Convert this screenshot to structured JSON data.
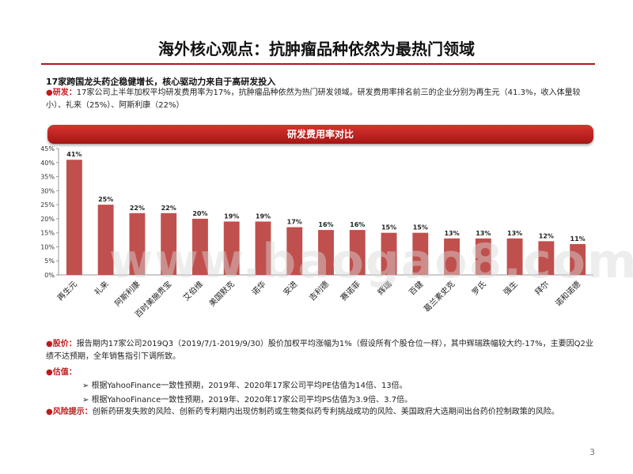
{
  "slide": {
    "title": "海外核心观点：抗肿瘤品种依然为最热门领域",
    "subheading": "17家跨国龙头药企稳健增长，核心驱动力来自于高研发投入",
    "rnd_label": "研发：",
    "rnd_text": "17家公司上半年加权平均研发费用率为17%，抗肿瘤品种依然为热门研发领域。研发费用率排名前三的企业分别为再生元（41.3%，收入体量较小）、礼来（25%）、阿斯利康（22%）",
    "chart_banner": "研发费用率对比",
    "price_label": "股价：",
    "price_text": "报告期内17家公司2019Q3（2019/7/1-2019/9/30）股价加权平均涨幅为1%（假设所有个股仓位一样），其中辉瑞跌幅较大约-17%，主要因Q2业绩不达预期，全年销售指引下调所致。",
    "valuation_label": "估值：",
    "valuation_bullets": [
      "根据YahooFinance一致性预期，2019年、2020年17家公司平均PE估值为14倍、13倍。",
      "根据YahooFinance一致性预期，2019年、2020年17家公司平均PS估值为3.9倍、3.7倍。"
    ],
    "risk_label": "风险提示：",
    "risk_text": "创新药研发失败的风险、创新药专利期内出现仿制药或生物类似药专利挑战成功的风险、美国政府大选期间出台药价控制政策的风险。",
    "page_number": "3",
    "watermark": "www.baogao8.com"
  },
  "chart_data": {
    "type": "bar",
    "categories": [
      "再生元",
      "礼来",
      "阿斯利康",
      "百时美施贵宝",
      "艾伯维",
      "美国默克",
      "诺华",
      "安进",
      "吉利德",
      "赛诺菲",
      "辉瑞",
      "百健",
      "葛兰素史克",
      "罗氏",
      "强生",
      "拜尔",
      "诺和诺德"
    ],
    "values": [
      41,
      25,
      22,
      22,
      20,
      19,
      19,
      17,
      16,
      16,
      15,
      15,
      13,
      13,
      13,
      12,
      11
    ],
    "data_labels": [
      "41%",
      "25%",
      "22%",
      "22%",
      "20%",
      "19%",
      "19%",
      "17%",
      "16%",
      "16%",
      "15%",
      "15%",
      "13%",
      "13%",
      "13%",
      "12%",
      "11%"
    ],
    "y_ticks": [
      "0%",
      "5%",
      "10%",
      "15%",
      "20%",
      "25%",
      "30%",
      "35%",
      "40%",
      "45%"
    ],
    "ylim": [
      0,
      45
    ],
    "bar_color": "#c0504d",
    "grid": false
  }
}
